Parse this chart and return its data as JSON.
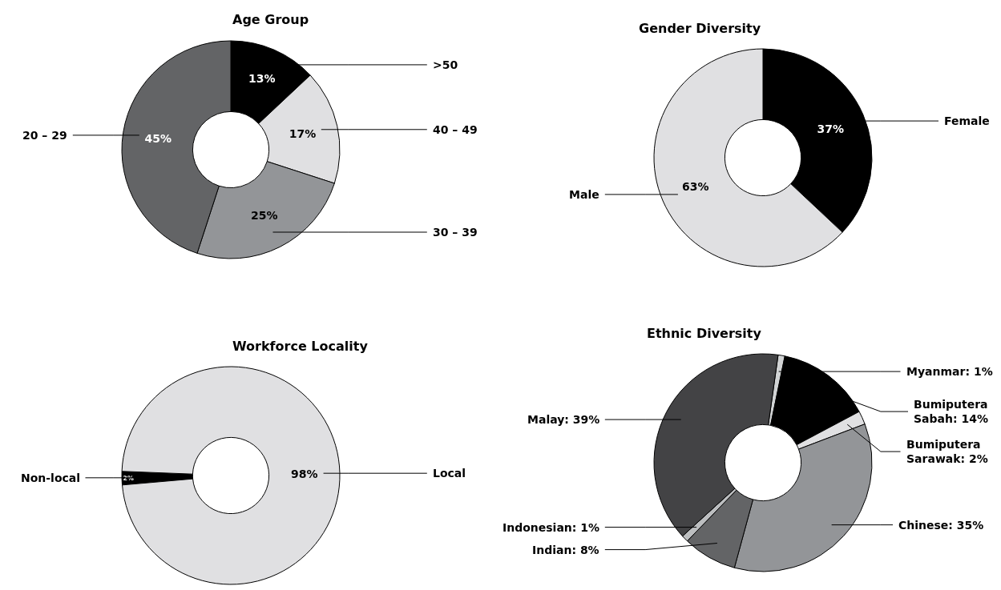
{
  "chart_data": [
    {
      "type": "donut",
      "title": "Age Group",
      "categories": [
        ">50",
        "40 – 49",
        "30 – 39",
        "20 – 29"
      ],
      "values": [
        13,
        17,
        25,
        45
      ],
      "value_labels": [
        "13%",
        "17%",
        "25%",
        "45%"
      ],
      "colors": [
        "#000000",
        "#e0e0e2",
        "#939598",
        "#636466"
      ]
    },
    {
      "type": "donut",
      "title": "Gender Diversity",
      "categories": [
        "Female",
        "Male"
      ],
      "values": [
        37,
        63
      ],
      "value_labels": [
        "37%",
        "63%"
      ],
      "colors": [
        "#000000",
        "#e0e0e2"
      ]
    },
    {
      "type": "donut",
      "title": "Workforce Locality",
      "categories": [
        "Non-local",
        "Local"
      ],
      "values": [
        2,
        98
      ],
      "value_labels": [
        "2%",
        "98%"
      ],
      "colors": [
        "#000000",
        "#e0e0e2"
      ]
    },
    {
      "type": "donut",
      "title": "Ethnic Diversity",
      "categories": [
        "Myanmar: 1%",
        "Bumiputera Sabah: 14%",
        "Bumiputera Sarawak: 2%",
        "Chinese: 35%",
        "Indian: 8%",
        "Indonesian: 1%",
        "Malay: 39%"
      ],
      "values": [
        1,
        14,
        2,
        35,
        8,
        1,
        39
      ],
      "colors": [
        "#d1d3d4",
        "#000000",
        "#e0e0e2",
        "#939598",
        "#636466",
        "#bcbec0",
        "#434345"
      ]
    }
  ]
}
